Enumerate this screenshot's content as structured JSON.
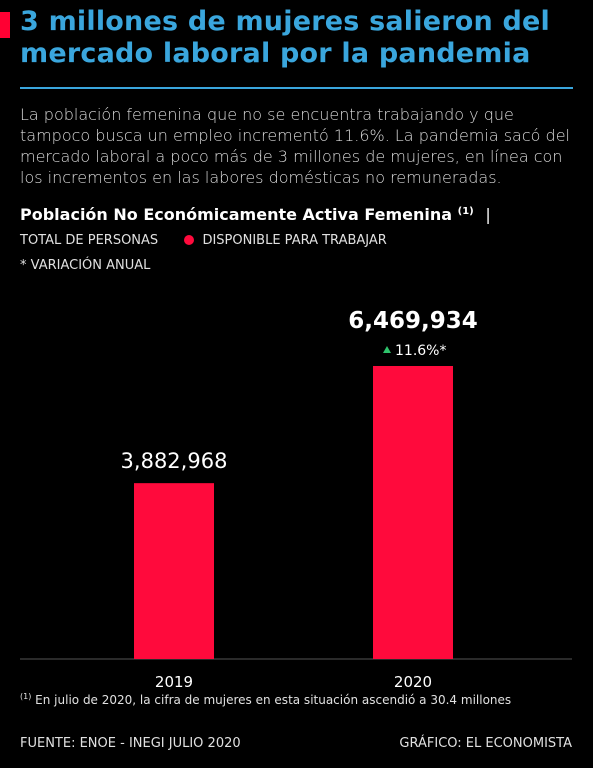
{
  "header": {
    "title": "3 millones de mujeres salieron del mercado laboral por la pandemia",
    "description": "La población femenina que no se encuentra trabajando y que tampoco busca un empleo incrementó 11.6%. La pandemia sacó del mercado laboral a poco más de 3 millones de mujeres, en línea con los incrementos en las labores domésticas no remuneradas."
  },
  "chart_header": {
    "subtitle": "Población No Económicamente Activa Femenina",
    "subtitle_sup": "(1)",
    "separator": "|",
    "unit_label": "TOTAL DE PERSONAS",
    "legend_label": "DISPONIBLE PARA TRABAJAR",
    "note": "* VARIACIÓN ANUAL"
  },
  "chart_data": {
    "type": "bar",
    "categories": [
      "2019",
      "2020"
    ],
    "values": [
      3882968,
      6469934
    ],
    "data_labels": [
      "3,882,968",
      "6,469,934"
    ],
    "change_label": "11.6%*",
    "change_direction": "up",
    "bar_color": "#ff0a3c",
    "change_color": "#2ec36b",
    "grid": false,
    "legend_position": "top"
  },
  "footer": {
    "footnote_sup": "(1)",
    "footnote": "En julio de 2020, la cifra de mujeres en esta situación ascendió a 30.4 millones",
    "source": "FUENTE: ENOE - INEGI JULIO 2020",
    "credit": "GRÁFICO: EL ECONOMISTA"
  },
  "colors": {
    "accent": "#ff0033",
    "title": "#3aa6dd",
    "background": "#000000"
  }
}
